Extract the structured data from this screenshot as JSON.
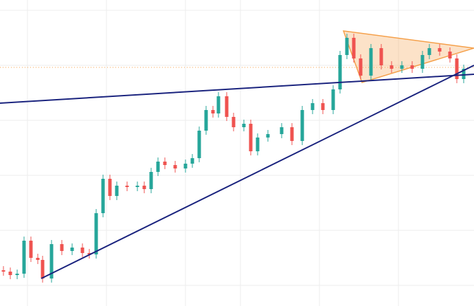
{
  "chart_data": {
    "type": "candlestick",
    "xlim": [
      0,
      690
    ],
    "ylim": [
      0,
      445
    ],
    "xticks": [
      40,
      155,
      270,
      350,
      465,
      580
    ],
    "yticks": [
      30,
      110,
      190,
      270,
      350,
      430
    ],
    "grid": true,
    "up_color": "#26a69a",
    "down_color": "#ef5350",
    "x": [
      5,
      15,
      25,
      35,
      45,
      55,
      62,
      75,
      90,
      105,
      120,
      130,
      140,
      150,
      160,
      170,
      185,
      200,
      210,
      220,
      230,
      240,
      255,
      270,
      280,
      290,
      300,
      310,
      318,
      330,
      340,
      355,
      365,
      375,
      390,
      410,
      425,
      440,
      455,
      470,
      485,
      495,
      505,
      515,
      525,
      540,
      555,
      570,
      585,
      600,
      615,
      625,
      640,
      655,
      665,
      675
    ],
    "open": [
      52,
      50,
      45,
      47,
      95,
      70,
      67,
      40,
      90,
      80,
      85,
      77,
      75,
      135,
      185,
      160,
      175,
      173,
      175,
      170,
      195,
      210,
      205,
      200,
      207,
      215,
      255,
      285,
      280,
      305,
      275,
      260,
      265,
      225,
      245,
      250,
      260,
      240,
      285,
      295,
      285,
      315,
      365,
      390,
      360,
      335,
      375,
      350,
      345,
      350,
      345,
      365,
      375,
      370,
      360,
      330
    ],
    "high": [
      58,
      56,
      53,
      101,
      101,
      76,
      73,
      96,
      96,
      91,
      91,
      83,
      141,
      191,
      191,
      181,
      181,
      181,
      181,
      201,
      216,
      216,
      211,
      213,
      221,
      261,
      291,
      291,
      311,
      311,
      281,
      271,
      271,
      251,
      256,
      266,
      266,
      291,
      301,
      301,
      321,
      371,
      396,
      396,
      366,
      381,
      381,
      356,
      356,
      356,
      371,
      381,
      381,
      376,
      366,
      351
    ],
    "low": [
      44,
      39,
      39,
      41,
      64,
      61,
      34,
      34,
      74,
      74,
      71,
      69,
      69,
      129,
      154,
      154,
      167,
      167,
      164,
      164,
      189,
      199,
      194,
      194,
      201,
      209,
      249,
      274,
      274,
      269,
      254,
      254,
      219,
      219,
      239,
      244,
      234,
      234,
      279,
      279,
      279,
      309,
      359,
      354,
      329,
      329,
      344,
      339,
      339,
      339,
      339,
      359,
      364,
      354,
      324,
      324
    ],
    "close": [
      50,
      45,
      47,
      95,
      70,
      67,
      40,
      90,
      80,
      85,
      77,
      75,
      135,
      185,
      160,
      175,
      173,
      175,
      170,
      195,
      210,
      205,
      200,
      207,
      215,
      255,
      285,
      280,
      305,
      275,
      260,
      265,
      225,
      245,
      250,
      260,
      240,
      285,
      295,
      285,
      315,
      365,
      390,
      360,
      335,
      375,
      350,
      345,
      350,
      345,
      365,
      375,
      370,
      360,
      330,
      345
    ],
    "trendlines": [
      {
        "color": "#1a237e",
        "x": [
          0,
          690
        ],
        "y": [
          295,
          337
        ]
      },
      {
        "color": "#1a237e",
        "x": [
          60,
          690
        ],
        "y": [
          40,
          350
        ]
      }
    ],
    "triangle": {
      "color": "#f5a04a",
      "x": [
        500,
        690,
        527
      ],
      "y": [
        400,
        375,
        325
      ]
    },
    "price_line": {
      "color": "#f5a04a",
      "value": 347
    }
  }
}
